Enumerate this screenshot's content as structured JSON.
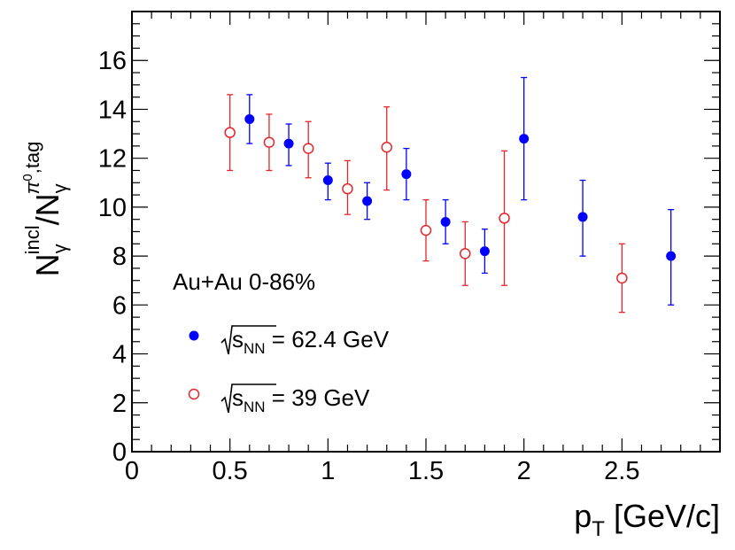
{
  "chart_data": {
    "type": "scatter",
    "title": "",
    "xlabel": {
      "base": "p",
      "sub": "T",
      "unit": " [GeV/c]"
    },
    "ylabel": {
      "num_base": "N",
      "num_sub": "γ",
      "num_sup": "incl",
      "slash": "/",
      "den_base": "N",
      "den_sub": "γ",
      "den_sup_pi": "π",
      "den_sup_zero": "0",
      "den_sup_tag": ",tag"
    },
    "xlim": [
      0,
      3.0
    ],
    "ylim": [
      0,
      18
    ],
    "x_ticks": [
      0,
      0.5,
      1,
      1.5,
      2,
      2.5
    ],
    "x_tick_labels": [
      "0",
      "0.5",
      "1",
      "1.5",
      "2",
      "2.5"
    ],
    "y_ticks": [
      0,
      2,
      4,
      6,
      8,
      10,
      12,
      14,
      16
    ],
    "y_tick_labels": [
      "0",
      "2",
      "4",
      "6",
      "8",
      "10",
      "12",
      "14",
      "16"
    ],
    "legend": {
      "header": "Au+Au 0-86%",
      "entries": [
        {
          "prefix": "s",
          "sub": "NN",
          "suffix": " = 62.4 GeV"
        },
        {
          "prefix": "s",
          "sub": "NN",
          "suffix": " = 39 GeV"
        }
      ]
    },
    "series": [
      {
        "name": "√sNN = 62.4 GeV",
        "color": "#0000ff",
        "marker": "filled-circle",
        "points": [
          {
            "x": 0.6,
            "y": 13.6,
            "lo": 12.6,
            "hi": 14.6
          },
          {
            "x": 0.8,
            "y": 12.6,
            "lo": 11.7,
            "hi": 13.4
          },
          {
            "x": 1.0,
            "y": 11.1,
            "lo": 10.3,
            "hi": 11.8
          },
          {
            "x": 1.2,
            "y": 10.25,
            "lo": 9.5,
            "hi": 11.0
          },
          {
            "x": 1.4,
            "y": 11.35,
            "lo": 10.3,
            "hi": 12.4
          },
          {
            "x": 1.6,
            "y": 9.4,
            "lo": 8.5,
            "hi": 10.3
          },
          {
            "x": 1.8,
            "y": 8.2,
            "lo": 7.3,
            "hi": 9.1
          },
          {
            "x": 2.0,
            "y": 12.8,
            "lo": 10.3,
            "hi": 15.3
          },
          {
            "x": 2.3,
            "y": 9.6,
            "lo": 8.0,
            "hi": 11.1
          },
          {
            "x": 2.75,
            "y": 8.0,
            "lo": 6.0,
            "hi": 9.9
          }
        ]
      },
      {
        "name": "√sNN = 39 GeV",
        "color": "#e8242a",
        "marker": "open-circle",
        "points": [
          {
            "x": 0.5,
            "y": 13.05,
            "lo": 11.5,
            "hi": 14.6
          },
          {
            "x": 0.7,
            "y": 12.65,
            "lo": 11.5,
            "hi": 13.8
          },
          {
            "x": 0.9,
            "y": 12.4,
            "lo": 11.2,
            "hi": 13.5
          },
          {
            "x": 1.1,
            "y": 10.75,
            "lo": 9.7,
            "hi": 11.9
          },
          {
            "x": 1.3,
            "y": 12.45,
            "lo": 10.7,
            "hi": 14.1
          },
          {
            "x": 1.5,
            "y": 9.05,
            "lo": 7.8,
            "hi": 10.3
          },
          {
            "x": 1.7,
            "y": 8.1,
            "lo": 6.8,
            "hi": 9.4
          },
          {
            "x": 1.9,
            "y": 9.55,
            "lo": 6.8,
            "hi": 12.3
          },
          {
            "x": 2.5,
            "y": 7.1,
            "lo": 5.7,
            "hi": 8.5
          }
        ]
      }
    ]
  }
}
